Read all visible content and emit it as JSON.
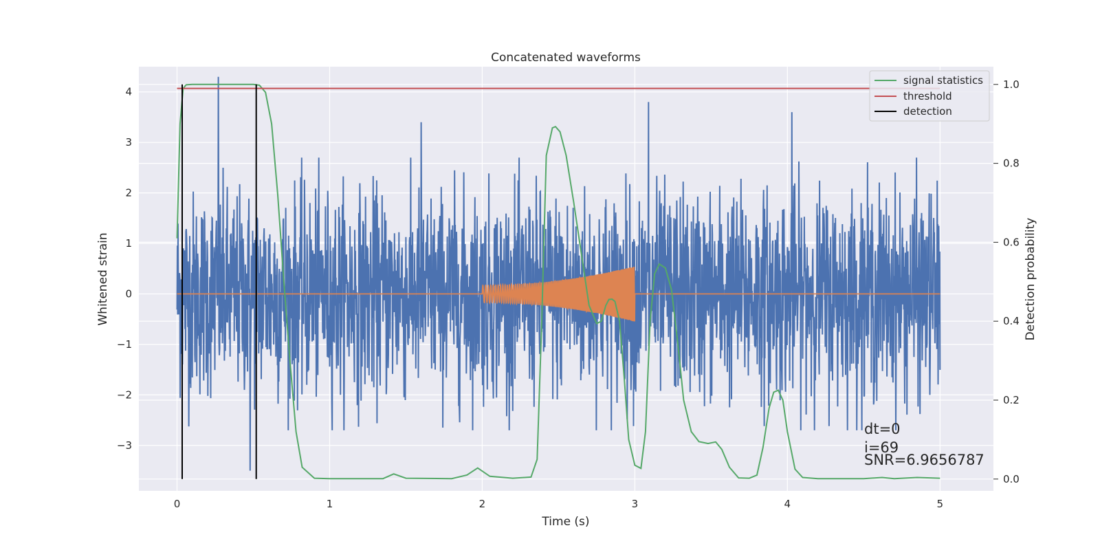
{
  "chart_data": {
    "type": "line",
    "title": "Concatenated waveforms",
    "xlabel": "Time (s)",
    "ylabel": "Whitened strain",
    "y2label": "Detection probability",
    "xlim": [
      -0.25,
      5.35
    ],
    "ylim": [
      -3.9,
      4.5
    ],
    "y2lim": [
      -0.03,
      1.045
    ],
    "x_ticks": [
      0,
      1,
      2,
      3,
      4,
      5
    ],
    "y_ticks": [
      -3,
      -2,
      -1,
      0,
      1,
      2,
      3,
      4
    ],
    "y2_ticks": [
      0.0,
      0.2,
      0.4,
      0.6,
      0.8,
      1.0
    ],
    "grid": true,
    "legend_position": "top-right",
    "colors": {
      "strain": "#4c72b0",
      "template": "#dd8452",
      "signal_statistics": "#55a868",
      "threshold": "#c44e52",
      "detection": "#000000",
      "background": "#eaeaf2",
      "grid": "#ffffff"
    },
    "strain": {
      "x_range": [
        0,
        5
      ],
      "typical_amplitude": 1.0,
      "peaks": [
        {
          "x": 0.27,
          "y": 4.3
        },
        {
          "x": 0.48,
          "y": -3.5
        },
        {
          "x": 1.6,
          "y": 3.4
        },
        {
          "x": 3.09,
          "y": 3.8
        },
        {
          "x": 4.03,
          "y": 3.6
        }
      ]
    },
    "template": {
      "x_range": [
        0,
        5
      ],
      "chirp_start": 2.0,
      "chirp_end": 3.0,
      "amp_start": 0.17,
      "amp_end": 0.55
    },
    "series": [
      {
        "name": "signal statistics",
        "axis": "right",
        "x": [
          0.0,
          0.02,
          0.04,
          0.06,
          0.1,
          0.2,
          0.3,
          0.4,
          0.5,
          0.54,
          0.58,
          0.62,
          0.66,
          0.7,
          0.74,
          0.78,
          0.82,
          0.9,
          1.0,
          1.35,
          1.42,
          1.5,
          1.8,
          1.9,
          1.97,
          2.05,
          2.2,
          2.32,
          2.36,
          2.39,
          2.42,
          2.46,
          2.48,
          2.51,
          2.55,
          2.6,
          2.65,
          2.7,
          2.75,
          2.78,
          2.81,
          2.83,
          2.85,
          2.87,
          2.9,
          2.93,
          2.96,
          3.0,
          3.04,
          3.07,
          3.1,
          3.13,
          3.16,
          3.2,
          3.24,
          3.28,
          3.32,
          3.37,
          3.42,
          3.48,
          3.53,
          3.57,
          3.62,
          3.68,
          3.75,
          3.8,
          3.84,
          3.88,
          3.91,
          3.94,
          3.97,
          4.0,
          4.05,
          4.1,
          4.2,
          4.5,
          4.62,
          4.7,
          4.85,
          5.0
        ],
        "y": [
          0.61,
          0.9,
          0.99,
          0.999,
          1.0,
          1.0,
          1.0,
          1.0,
          1.0,
          0.998,
          0.98,
          0.9,
          0.72,
          0.5,
          0.3,
          0.12,
          0.03,
          0.002,
          0.001,
          0.001,
          0.013,
          0.002,
          0.001,
          0.01,
          0.028,
          0.007,
          0.002,
          0.005,
          0.05,
          0.4,
          0.82,
          0.89,
          0.893,
          0.88,
          0.82,
          0.7,
          0.57,
          0.44,
          0.394,
          0.4,
          0.44,
          0.455,
          0.456,
          0.45,
          0.4,
          0.26,
          0.1,
          0.035,
          0.027,
          0.12,
          0.4,
          0.52,
          0.545,
          0.535,
          0.48,
          0.35,
          0.2,
          0.12,
          0.095,
          0.09,
          0.094,
          0.075,
          0.03,
          0.003,
          0.002,
          0.01,
          0.08,
          0.18,
          0.22,
          0.225,
          0.2,
          0.12,
          0.025,
          0.004,
          0.001,
          0.001,
          0.004,
          0.001,
          0.004,
          0.002
        ]
      },
      {
        "name": "threshold",
        "axis": "right",
        "x": [
          0.0,
          5.0
        ],
        "y": [
          0.99,
          0.99
        ]
      },
      {
        "name": "detection",
        "axis": "right",
        "x": [
          0.034,
          0.519
        ],
        "y": [
          0.0,
          1.0
        ]
      }
    ],
    "annotation": {
      "dt": "dt=0",
      "i": "i=69",
      "snr": "SNR=6.9656787"
    }
  }
}
